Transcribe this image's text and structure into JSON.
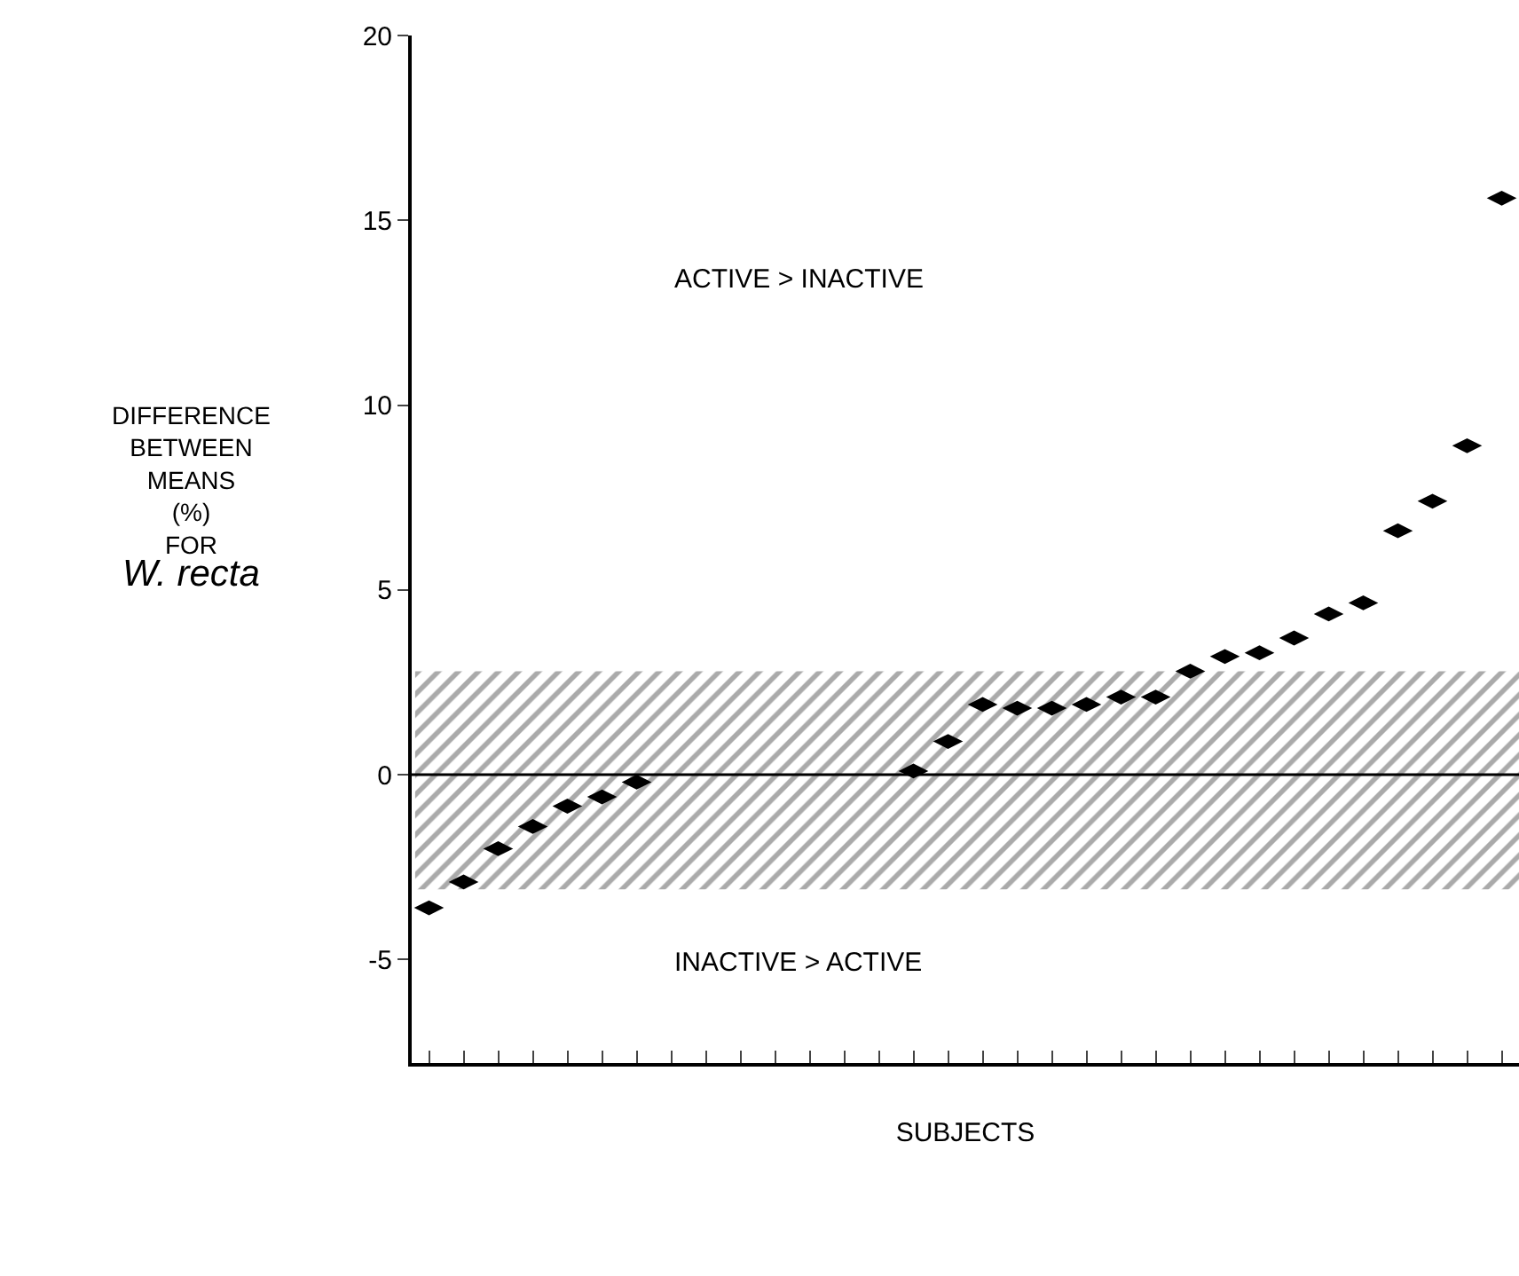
{
  "chart_data": {
    "type": "scatter",
    "xlabel": "SUBJECTS",
    "ylabel": "DIFFERENCE\nBETWEEN\nMEANS\n(%)\nFOR\nW. recta",
    "annotations": [
      "ACTIVE > INACTIVE",
      "INACTIVE > ACTIVE"
    ],
    "categories": [
      null,
      null,
      null,
      null,
      null,
      null,
      null,
      null,
      null,
      null,
      null,
      null,
      null,
      null,
      null,
      null,
      null,
      null,
      null,
      null,
      null,
      null,
      null,
      null,
      null,
      null,
      null,
      null,
      null,
      null,
      null,
      null
    ],
    "series": [
      {
        "color": "#000000",
        "values": [
          -3.6,
          -2.9,
          -2.0,
          -1.4,
          -0.85,
          -0.6,
          -0.2,
          null,
          null,
          null,
          null,
          null,
          null,
          null,
          0.1,
          0.9,
          1.9,
          1.8,
          1.8,
          1.9,
          2.1,
          2.1,
          2.8,
          3.2,
          3.3,
          3.7,
          4.35,
          4.65,
          6.6,
          7.4,
          8.9,
          15.6
        ]
      }
    ],
    "ylim": [
      -7.8,
      20
    ],
    "yticks": [
      20,
      15,
      10,
      5,
      0,
      -5
    ],
    "ref_lines": [
      {
        "axis": "y",
        "value": 0,
        "color": "#000000"
      }
    ],
    "bands": [
      {
        "axis": "y",
        "from": -3.1,
        "to": 2.8,
        "color": "#555555"
      }
    ],
    "grid": false
  }
}
